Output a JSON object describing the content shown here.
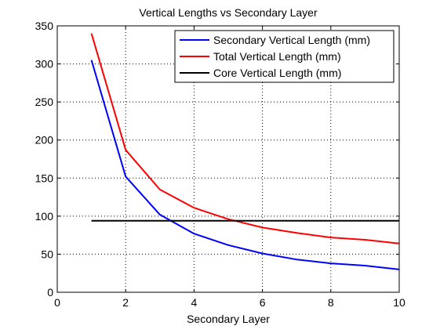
{
  "chart_data": {
    "type": "line",
    "title": "Vertical Lengths vs Secondary Layer",
    "xlabel": "Secondary Layer",
    "ylabel": "",
    "xlim": [
      0,
      10
    ],
    "ylim": [
      0,
      350
    ],
    "xticks": [
      "0",
      "2",
      "4",
      "6",
      "8",
      "10"
    ],
    "yticks": [
      "0",
      "50",
      "100",
      "150",
      "200",
      "250",
      "300",
      "350"
    ],
    "grid": true,
    "legend_position": "top-right",
    "x": [
      1,
      2,
      3,
      4,
      5,
      6,
      7,
      8,
      9,
      10
    ],
    "series": [
      {
        "name": "Secondary Vertical Length (mm)",
        "color": "#0000ff",
        "values": [
          305,
          152,
          102,
          77,
          62,
          51,
          43,
          38,
          35,
          30
        ]
      },
      {
        "name": "Total Vertical Length (mm)",
        "color": "#ff0000",
        "values": [
          340,
          187,
          135,
          111,
          96,
          85,
          78,
          72,
          69,
          64
        ]
      },
      {
        "name": "Core Vertical Length (mm)",
        "color": "#000000",
        "values": [
          94,
          94,
          94,
          94,
          94,
          94,
          94,
          94,
          94,
          94
        ]
      }
    ]
  }
}
